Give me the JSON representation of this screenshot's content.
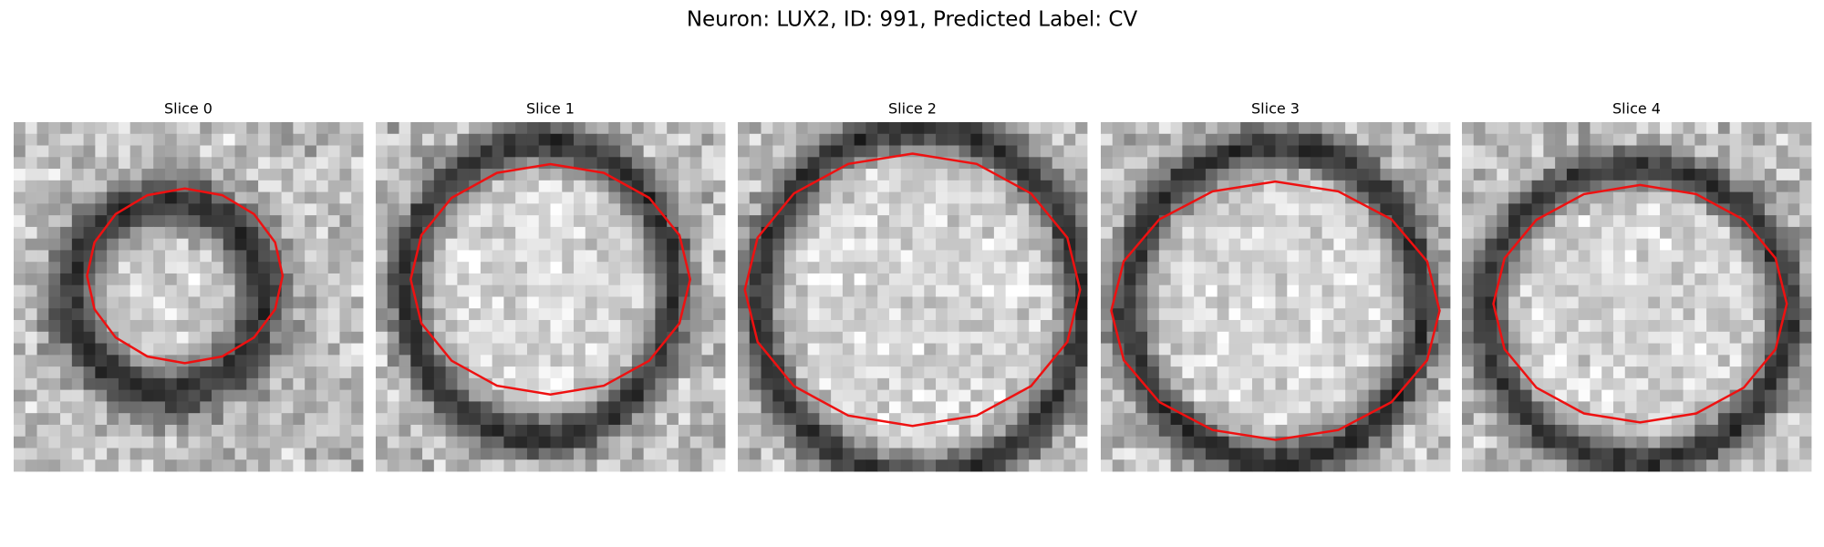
{
  "title": "Neuron: LUX2, ID: 991, Predicted Label: CV",
  "panels": [
    {
      "title": "Slice 0"
    },
    {
      "title": "Slice 1"
    },
    {
      "title": "Slice 2"
    },
    {
      "title": "Slice 3"
    },
    {
      "title": "Slice 4"
    }
  ]
}
